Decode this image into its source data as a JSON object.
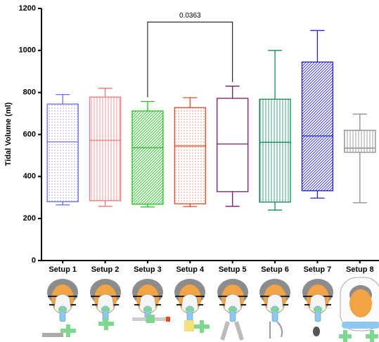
{
  "chart_data": {
    "type": "box",
    "y_label": "Tidal Volume (ml)",
    "categories": [
      "Setup 1",
      "Setup 2",
      "Setup 3",
      "Setup 4",
      "Setup 5",
      "Setup 6",
      "Setup 7",
      "Setup 8"
    ],
    "boxes": [
      {
        "min": 265,
        "q1": 280,
        "median": 565,
        "q3": 745,
        "max": 790
      },
      {
        "min": 258,
        "q1": 285,
        "median": 572,
        "q3": 778,
        "max": 820
      },
      {
        "min": 255,
        "q1": 268,
        "median": 537,
        "q3": 712,
        "max": 757
      },
      {
        "min": 257,
        "q1": 270,
        "median": 545,
        "q3": 728,
        "max": 775
      },
      {
        "min": 258,
        "q1": 328,
        "median": 555,
        "q3": 772,
        "max": 830
      },
      {
        "min": 240,
        "q1": 278,
        "median": 563,
        "q3": 768,
        "max": 1000
      },
      {
        "min": 297,
        "q1": 332,
        "median": 593,
        "q3": 945,
        "max": 1095
      },
      {
        "min": 275,
        "q1": 515,
        "median": 535,
        "q3": 620,
        "max": 697
      }
    ],
    "colors": [
      "#6b6be6",
      "#f07a7a",
      "#22c022",
      "#e8481e",
      "#7a1a6a",
      "#108a55",
      "#2222c4",
      "#8a8a8a"
    ],
    "patterns": [
      "dots",
      "vertical",
      "diagonal",
      "dots",
      "none",
      "vertical",
      "diagonal",
      "vertical"
    ],
    "comparisons": [
      {
        "label": "0.0363",
        "between": [
          2,
          4
        ]
      }
    ],
    "ylim": [
      0,
      1200
    ],
    "yticks": [
      0,
      200,
      400,
      600,
      800,
      1000,
      1200
    ]
  }
}
